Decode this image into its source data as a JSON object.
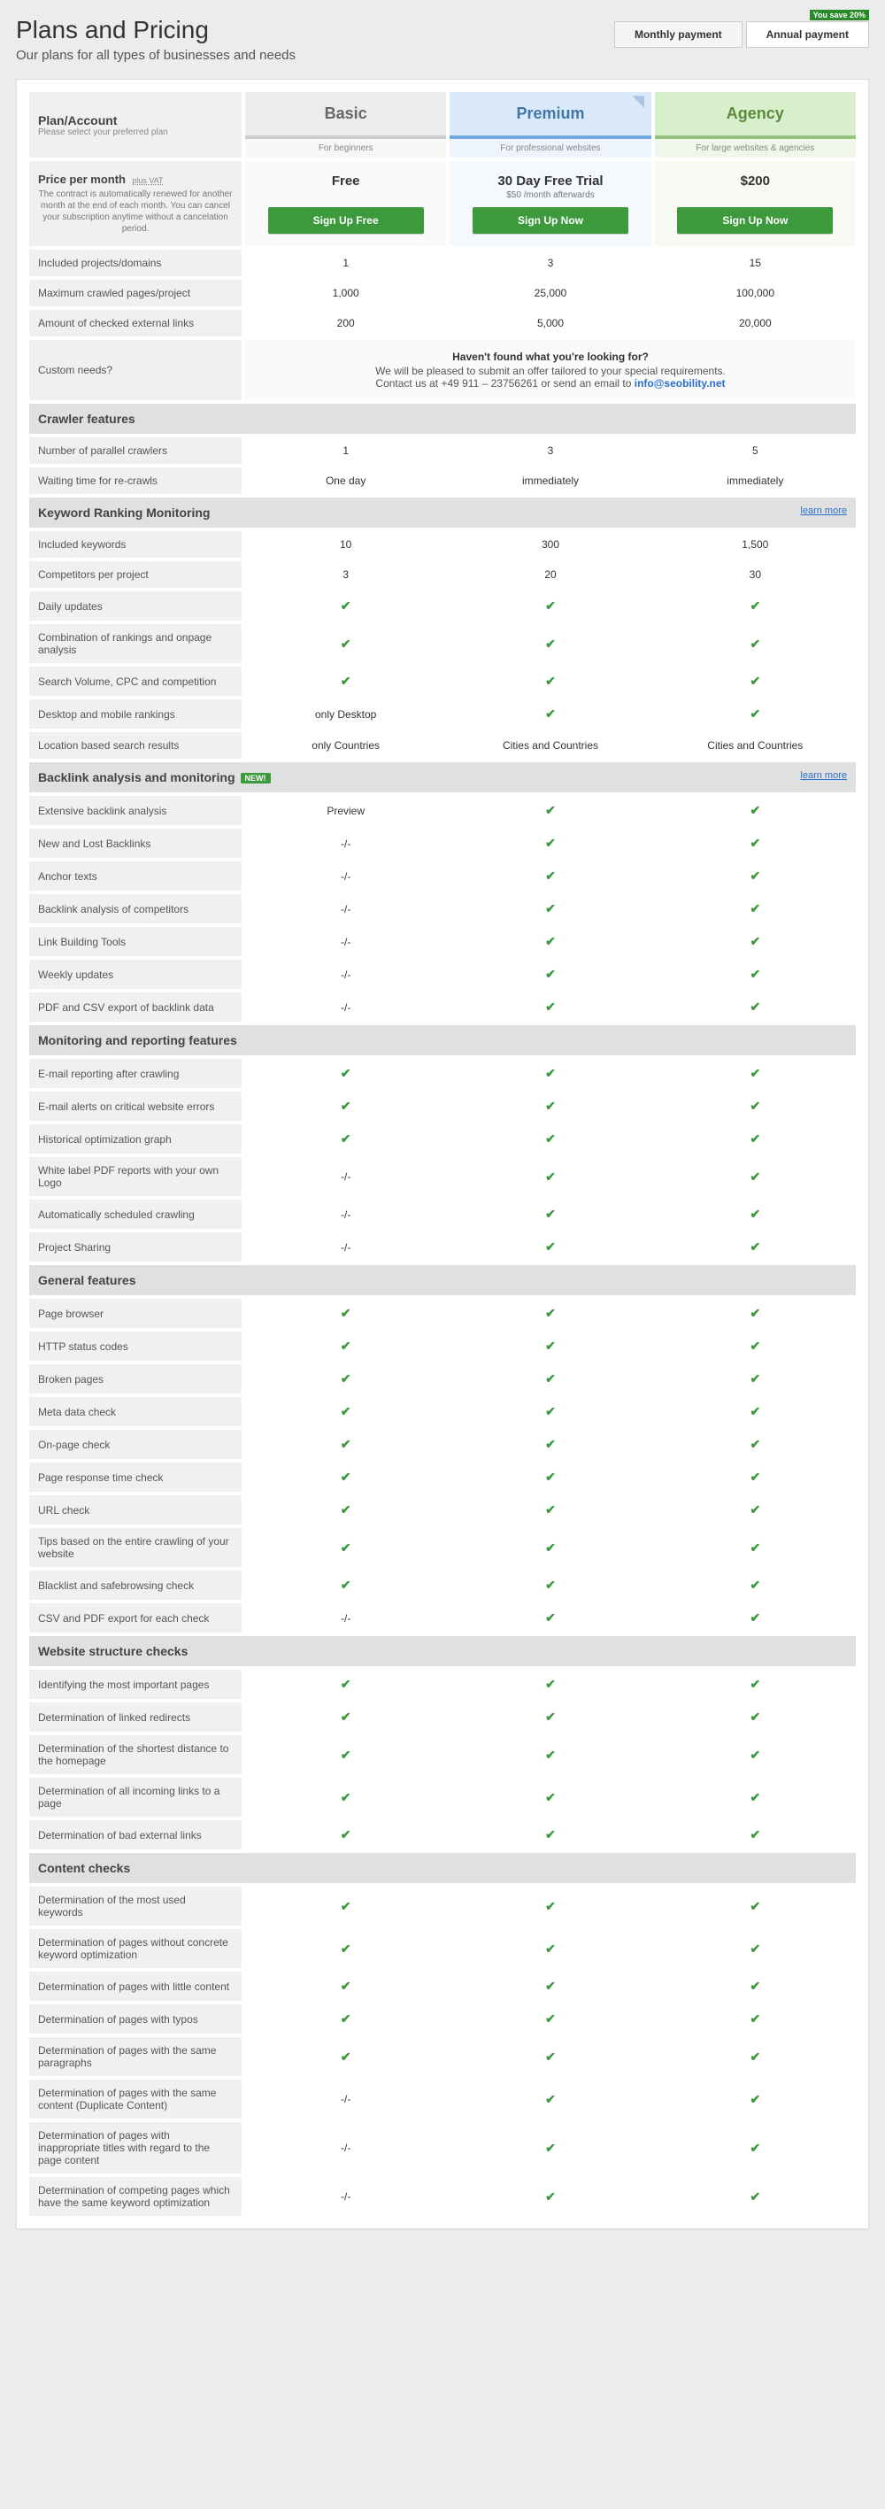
{
  "page": {
    "title": "Plans and Pricing",
    "subtitle": "Our plans for all types of businesses and needs"
  },
  "toggle": {
    "monthly": "Monthly payment",
    "annual": "Annual payment",
    "save": "You save 20%"
  },
  "header": {
    "plan_account": "Plan/Account",
    "plan_account_sub": "Please select your preferred plan",
    "basic": "Basic",
    "premium": "Premium",
    "agency": "Agency",
    "basic_sub": "For beginners",
    "premium_sub": "For professional websites",
    "agency_sub": "For large websites & agencies"
  },
  "price": {
    "label": "Price per month",
    "vat": "plus VAT",
    "desc": "The contract is automatically renewed for another month at the end of each month. You can cancel your subscription anytime without a cancelation period.",
    "basic_title": "Free",
    "basic_btn": "Sign Up Free",
    "premium_title": "30 Day Free Trial",
    "premium_sub": "$50 /month afterwards",
    "premium_btn": "Sign Up Now",
    "agency_title": "$200",
    "agency_btn": "Sign Up Now"
  },
  "custom": {
    "label": "Custom needs?",
    "bold": "Haven't found what you're looking for?",
    "line1": "We will be pleased to submit an offer tailored to your special requirements.",
    "line2a": "Contact us at +49 911 – 23756261 or send an email to ",
    "email": "info@seobility.net"
  },
  "learn_more": "learn more",
  "new_badge": "NEW!",
  "rows": {
    "r1": {
      "l": "Included projects/domains",
      "b": "1",
      "p": "3",
      "a": "15"
    },
    "r2": {
      "l": "Maximum crawled pages/project",
      "b": "1,000",
      "p": "25,000",
      "a": "100,000"
    },
    "r3": {
      "l": "Amount of checked external links",
      "b": "200",
      "p": "5,000",
      "a": "20,000"
    },
    "s1": "Crawler features",
    "r4": {
      "l": "Number of parallel crawlers",
      "b": "1",
      "p": "3",
      "a": "5"
    },
    "r5": {
      "l": "Waiting time for re-crawls",
      "b": "One day",
      "p": "immediately",
      "a": "immediately"
    },
    "s2": "Keyword Ranking Monitoring",
    "r6": {
      "l": "Included keywords",
      "b": "10",
      "p": "300",
      "a": "1,500"
    },
    "r7": {
      "l": "Competitors per project",
      "b": "3",
      "p": "20",
      "a": "30"
    },
    "r8": {
      "l": "Daily updates"
    },
    "r9": {
      "l": "Combination of rankings and onpage analysis"
    },
    "r10": {
      "l": "Search Volume, CPC and competition"
    },
    "r11": {
      "l": "Desktop and mobile rankings",
      "b": "only Desktop"
    },
    "r12": {
      "l": "Location based search results",
      "b": "only Countries",
      "p": "Cities and Countries",
      "a": "Cities and Countries"
    },
    "s3": "Backlink analysis and monitoring",
    "r13": {
      "l": "Extensive backlink analysis",
      "b": "Preview"
    },
    "r14": {
      "l": "New and Lost Backlinks",
      "b": "-/-"
    },
    "r15": {
      "l": "Anchor texts",
      "b": "-/-"
    },
    "r16": {
      "l": "Backlink analysis of competitors",
      "b": "-/-"
    },
    "r17": {
      "l": "Link Building Tools",
      "b": "-/-"
    },
    "r18": {
      "l": "Weekly updates",
      "b": "-/-"
    },
    "r19": {
      "l": "PDF and CSV export of backlink data",
      "b": "-/-"
    },
    "s4": "Monitoring and reporting features",
    "r20": {
      "l": "E-mail reporting after crawling"
    },
    "r21": {
      "l": "E-mail alerts on critical website errors"
    },
    "r22": {
      "l": "Historical optimization graph"
    },
    "r23": {
      "l": "White label PDF reports with your own Logo",
      "b": "-/-"
    },
    "r24": {
      "l": "Automatically scheduled crawling",
      "b": "-/-"
    },
    "r25": {
      "l": "Project Sharing",
      "b": "-/-"
    },
    "s5": "General features",
    "r26": {
      "l": "Page browser"
    },
    "r27": {
      "l": "HTTP status codes"
    },
    "r28": {
      "l": "Broken pages"
    },
    "r29": {
      "l": "Meta data check"
    },
    "r30": {
      "l": "On-page check"
    },
    "r31": {
      "l": "Page response time check"
    },
    "r32": {
      "l": "URL check"
    },
    "r33": {
      "l": "Tips based on the entire crawling of your website"
    },
    "r34": {
      "l": "Blacklist and safebrowsing check"
    },
    "r35": {
      "l": "CSV and PDF export for each check",
      "b": "-/-"
    },
    "s6": "Website structure checks",
    "r36": {
      "l": "Identifying the most important pages"
    },
    "r37": {
      "l": "Determination of linked redirects"
    },
    "r38": {
      "l": "Determination of the shortest distance to the homepage"
    },
    "r39": {
      "l": "Determination of all incoming links to a page"
    },
    "r40": {
      "l": "Determination of bad external links"
    },
    "s7": "Content checks",
    "r41": {
      "l": "Determination of the most used keywords"
    },
    "r42": {
      "l": "Determination of pages without concrete keyword optimization"
    },
    "r43": {
      "l": "Determination of pages with little content"
    },
    "r44": {
      "l": "Determination of pages with typos"
    },
    "r45": {
      "l": "Determination of pages with the same paragraphs"
    },
    "r46": {
      "l": "Determination of pages with the same content (Duplicate Content)",
      "b": "-/-"
    },
    "r47": {
      "l": "Determination of pages with inappropriate titles with regard to the page content",
      "b": "-/-"
    },
    "r48": {
      "l": "Determination of competing pages which have the same keyword optimization",
      "b": "-/-"
    }
  }
}
